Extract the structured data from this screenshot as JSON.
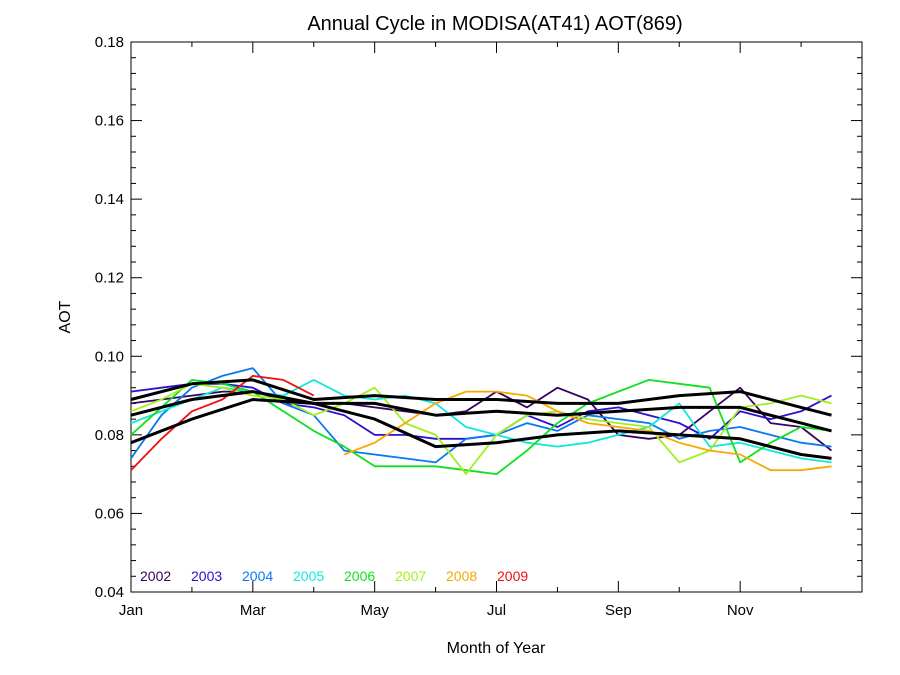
{
  "chart_data": {
    "type": "line",
    "title": "Annual Cycle in MODISA(AT41) AOT(869)",
    "xlabel": "Month of Year",
    "ylabel": "AOT",
    "xlim": [
      1,
      13
    ],
    "ylim": [
      0.04,
      0.18
    ],
    "x_ticks": [
      {
        "value": 1,
        "label": "Jan"
      },
      {
        "value": 3,
        "label": "Mar"
      },
      {
        "value": 5,
        "label": "May"
      },
      {
        "value": 7,
        "label": "Jul"
      },
      {
        "value": 9,
        "label": "Sep"
      },
      {
        "value": 11,
        "label": "Nov"
      }
    ],
    "y_ticks": [
      0.04,
      0.06,
      0.08,
      0.1,
      0.12,
      0.14,
      0.16,
      0.18
    ],
    "y_tick_labels": [
      "0.04",
      "0.06",
      "0.08",
      "0.10",
      "0.12",
      "0.14",
      "0.16",
      "0.18"
    ],
    "grid": false,
    "legend_position": "bottom-left inside plot",
    "series": [
      {
        "name": "2002",
        "color": "#3a0060",
        "x": [
          1.0,
          1.5,
          2.0,
          2.5,
          3.0,
          3.5,
          4.0,
          4.5,
          5.0,
          5.5,
          6.0,
          6.5,
          7.0,
          7.5,
          8.0,
          8.5,
          9.0,
          9.5,
          10.0,
          10.5,
          11.0,
          11.5,
          12.0,
          12.5
        ],
        "y": [
          0.088,
          0.089,
          0.09,
          0.091,
          0.091,
          0.089,
          0.088,
          0.088,
          0.087,
          0.086,
          0.085,
          0.086,
          0.091,
          0.087,
          0.092,
          0.089,
          0.08,
          0.079,
          0.08,
          0.086,
          0.092,
          0.083,
          0.082,
          0.076
        ]
      },
      {
        "name": "2003",
        "color": "#2c10d0",
        "x": [
          1.0,
          1.5,
          2.0,
          2.5,
          3.0,
          3.5,
          4.0,
          4.5,
          5.0,
          5.5,
          6.0,
          6.5,
          7.0,
          7.5,
          8.0,
          8.5,
          9.0,
          9.5,
          10.0,
          10.5,
          11.0,
          11.5,
          12.0,
          12.5
        ],
        "y": [
          0.091,
          0.092,
          0.093,
          0.093,
          0.092,
          0.088,
          0.087,
          0.085,
          0.08,
          0.08,
          0.079,
          0.079,
          0.08,
          0.085,
          0.082,
          0.086,
          0.087,
          0.085,
          0.083,
          0.079,
          0.086,
          0.084,
          0.086,
          0.09
        ]
      },
      {
        "name": "2004",
        "color": "#0a78f0",
        "x": [
          1.0,
          1.5,
          2.0,
          2.5,
          3.0,
          3.5,
          4.0,
          4.5,
          5.0,
          5.5,
          6.0,
          6.5,
          7.0,
          7.5,
          8.0,
          8.5,
          9.0,
          9.5,
          10.0,
          10.5,
          11.0,
          11.5,
          12.0,
          12.5
        ],
        "y": [
          0.074,
          0.085,
          0.092,
          0.095,
          0.097,
          0.088,
          0.085,
          0.076,
          0.075,
          0.074,
          0.073,
          0.079,
          0.08,
          0.083,
          0.081,
          0.085,
          0.084,
          0.083,
          0.079,
          0.081,
          0.082,
          0.08,
          0.078,
          0.077
        ]
      },
      {
        "name": "2005",
        "color": "#10e8d8",
        "x": [
          1.0,
          1.5,
          2.0,
          2.5,
          3.0,
          3.5,
          4.0,
          4.5,
          5.0,
          5.5,
          6.0,
          6.5,
          7.0,
          7.5,
          8.0,
          8.5,
          9.0,
          9.5,
          10.0,
          10.5,
          11.0,
          11.5,
          12.0,
          12.5
        ],
        "y": [
          0.083,
          0.086,
          0.089,
          0.092,
          0.091,
          0.09,
          0.094,
          0.09,
          0.089,
          0.09,
          0.088,
          0.082,
          0.08,
          0.078,
          0.077,
          0.078,
          0.08,
          0.082,
          0.088,
          0.077,
          0.078,
          0.076,
          0.074,
          0.073
        ]
      },
      {
        "name": "2006",
        "color": "#10e020",
        "x": [
          1.0,
          1.5,
          2.0,
          2.5,
          3.0,
          3.5,
          4.0,
          4.5,
          5.0,
          5.5,
          6.0,
          6.5,
          7.0,
          7.5,
          8.0,
          8.5,
          9.0,
          9.5,
          10.0,
          10.5,
          11.0,
          11.5,
          12.0,
          12.5
        ],
        "y": [
          0.08,
          0.087,
          0.094,
          0.093,
          0.091,
          0.086,
          0.081,
          0.077,
          0.072,
          0.072,
          0.072,
          0.071,
          0.07,
          0.076,
          0.083,
          0.088,
          0.091,
          0.094,
          0.093,
          0.092,
          0.073,
          0.078,
          0.082,
          0.081
        ]
      },
      {
        "name": "2007",
        "color": "#a0f020",
        "x": [
          1.0,
          1.5,
          2.0,
          2.5,
          3.0,
          3.5,
          4.0,
          4.5,
          5.0,
          5.5,
          6.0,
          6.5,
          7.0,
          7.5,
          8.0,
          8.5,
          9.0,
          9.5,
          10.0,
          10.5,
          11.0,
          11.5,
          12.0,
          12.5
        ],
        "y": [
          0.086,
          0.089,
          0.093,
          0.092,
          0.09,
          0.089,
          0.085,
          0.088,
          0.092,
          0.083,
          0.08,
          0.07,
          0.08,
          0.085,
          0.086,
          0.084,
          0.083,
          0.082,
          0.073,
          0.076,
          0.087,
          0.088,
          0.09,
          0.088
        ]
      },
      {
        "name": "2008",
        "color": "#f8a800",
        "x": [
          4.5,
          5.0,
          5.5,
          6.0,
          6.5,
          7.0,
          7.5,
          8.0,
          8.5,
          9.0,
          9.5,
          10.0,
          10.5,
          11.0,
          11.5,
          12.0,
          12.5
        ],
        "y": [
          0.075,
          0.078,
          0.083,
          0.088,
          0.091,
          0.091,
          0.09,
          0.086,
          0.083,
          0.082,
          0.081,
          0.078,
          0.076,
          0.075,
          0.071,
          0.071,
          0.072
        ]
      },
      {
        "name": "2009",
        "color": "#f01010",
        "x": [
          1.0,
          1.5,
          2.0,
          2.5,
          3.0,
          3.5,
          4.0
        ],
        "y": [
          0.071,
          0.079,
          0.086,
          0.089,
          0.095,
          0.094,
          0.09
        ]
      },
      {
        "name": "",
        "color": "#000000",
        "width": 3,
        "x": [
          1.0,
          2.0,
          3.0,
          4.0,
          5.0,
          6.0,
          7.0,
          8.0,
          9.0,
          10.0,
          11.0,
          12.0,
          12.5
        ],
        "y": [
          0.089,
          0.093,
          0.094,
          0.089,
          0.09,
          0.089,
          0.089,
          0.088,
          0.088,
          0.09,
          0.091,
          0.087,
          0.085
        ]
      },
      {
        "name": "",
        "color": "#000000",
        "width": 3,
        "x": [
          1.0,
          2.0,
          3.0,
          4.0,
          5.0,
          6.0,
          7.0,
          8.0,
          9.0,
          10.0,
          11.0,
          12.0,
          12.5
        ],
        "y": [
          0.085,
          0.089,
          0.091,
          0.088,
          0.088,
          0.085,
          0.086,
          0.085,
          0.086,
          0.087,
          0.087,
          0.083,
          0.081
        ]
      },
      {
        "name": "",
        "color": "#000000",
        "width": 3,
        "x": [
          1.0,
          2.0,
          3.0,
          4.0,
          5.0,
          6.0,
          7.0,
          8.0,
          9.0,
          10.0,
          11.0,
          12.0,
          12.5
        ],
        "y": [
          0.078,
          0.084,
          0.089,
          0.088,
          0.084,
          0.077,
          0.078,
          0.08,
          0.081,
          0.08,
          0.079,
          0.075,
          0.074
        ]
      }
    ]
  }
}
